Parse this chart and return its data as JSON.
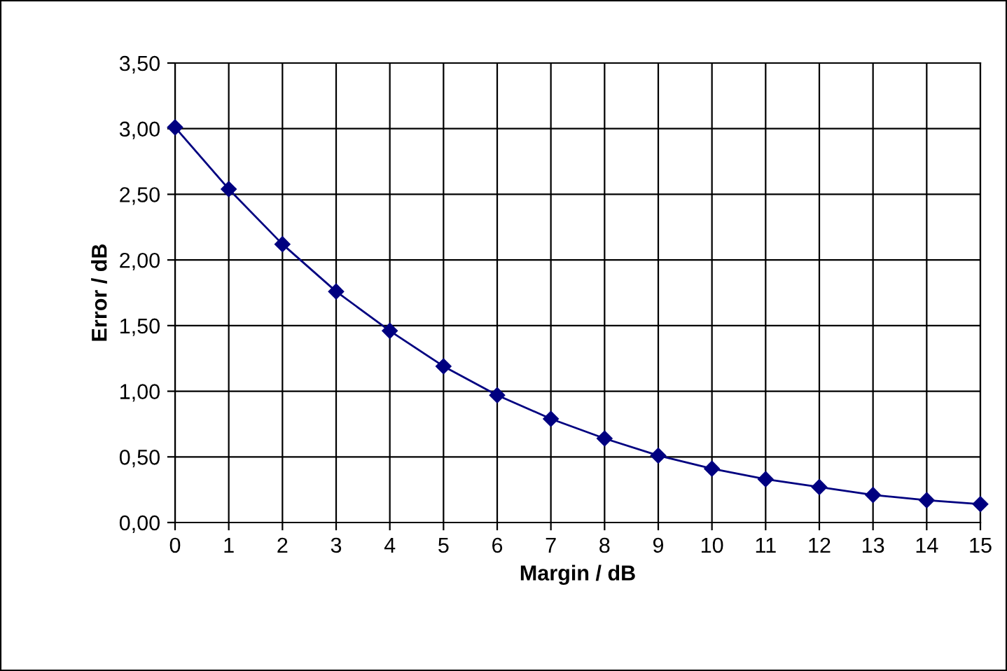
{
  "chart_data": {
    "type": "line",
    "xlabel": "Margin / dB",
    "ylabel": "Error / dB",
    "x": [
      0,
      1,
      2,
      3,
      4,
      5,
      6,
      7,
      8,
      9,
      10,
      11,
      12,
      13,
      14,
      15
    ],
    "series": [
      {
        "color": "#000080",
        "values": [
          3.01,
          2.54,
          2.12,
          1.76,
          1.46,
          1.19,
          0.97,
          0.79,
          0.64,
          0.51,
          0.41,
          0.33,
          0.27,
          0.21,
          0.17,
          0.14
        ]
      }
    ],
    "xlim": [
      0,
      15
    ],
    "xticks": [
      0,
      1,
      2,
      3,
      4,
      5,
      6,
      7,
      8,
      9,
      10,
      11,
      12,
      13,
      14,
      15
    ],
    "ylim": [
      0,
      3.5
    ],
    "yticks": [
      {
        "value": 0,
        "label": "0,00"
      },
      {
        "value": 0.5,
        "label": "0,50"
      },
      {
        "value": 1,
        "label": "1,00"
      },
      {
        "value": 1.5,
        "label": "1,50"
      },
      {
        "value": 2,
        "label": "2,00"
      },
      {
        "value": 2.5,
        "label": "2,50"
      },
      {
        "value": 3,
        "label": "3,00"
      },
      {
        "value": 3.5,
        "label": "3,50"
      }
    ],
    "grid": true,
    "marker": "diamond",
    "line_style": "solid",
    "legend": false
  }
}
